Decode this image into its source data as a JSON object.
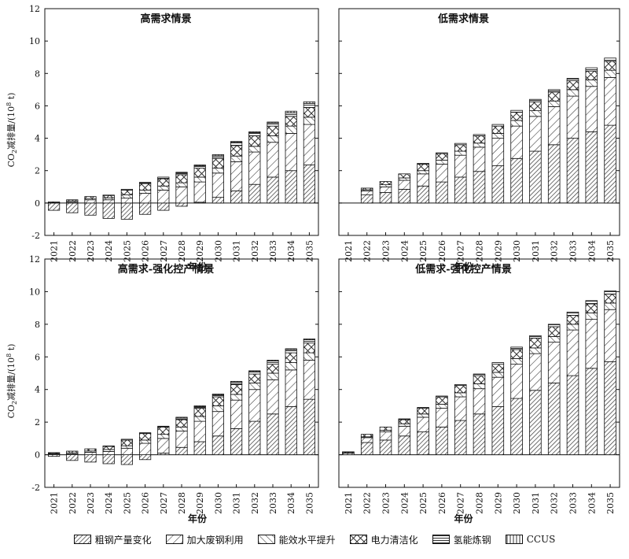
{
  "y_label_main": "CO",
  "y_label_sub": "2",
  "y_label_rest": "减排量/(10",
  "y_label_sup": "8",
  "y_label_end": " t)",
  "legend": [
    {
      "name": "粗钢产量变化",
      "pattern": "diag-dense"
    },
    {
      "name": "加大废钢利用",
      "pattern": "diag-sparse"
    },
    {
      "name": "能效水平提升",
      "pattern": "backdiag"
    },
    {
      "name": "电力清洁化",
      "pattern": "cross"
    },
    {
      "name": "氢能炼钢",
      "pattern": "hlines"
    },
    {
      "name": "CCUS",
      "pattern": "vlines"
    }
  ],
  "chart_data": [
    {
      "type": "bar",
      "stacked": true,
      "title": "高需求情景",
      "xlabel": "年份",
      "ylabel": "CO2减排量/(10^8 t)",
      "ylim": [
        -2,
        12
      ],
      "yticks": [
        -2,
        0,
        2,
        4,
        6,
        8,
        10,
        12
      ],
      "categories": [
        "2021",
        "2022",
        "2023",
        "2024",
        "2025",
        "2026",
        "2027",
        "2028",
        "2029",
        "2030",
        "2031",
        "2032",
        "2033",
        "2034",
        "2035"
      ],
      "series": [
        {
          "name": "粗钢产量变化",
          "values": [
            -0.45,
            -0.6,
            -0.75,
            -0.95,
            -1.0,
            -0.7,
            -0.45,
            -0.2,
            0.05,
            0.35,
            0.75,
            1.15,
            1.6,
            2.0,
            2.35
          ]
        },
        {
          "name": "加大废钢利用",
          "values": [
            0.0,
            0.05,
            0.2,
            0.2,
            0.3,
            0.6,
            0.8,
            1.0,
            1.25,
            1.5,
            1.8,
            2.0,
            2.15,
            2.3,
            2.5
          ]
        },
        {
          "name": "能效水平提升",
          "values": [
            0.02,
            0.08,
            0.08,
            0.12,
            0.2,
            0.2,
            0.25,
            0.25,
            0.3,
            0.3,
            0.35,
            0.35,
            0.4,
            0.45,
            0.45
          ]
        },
        {
          "name": "电力清洁化",
          "values": [
            0.05,
            0.07,
            0.12,
            0.15,
            0.3,
            0.4,
            0.45,
            0.5,
            0.55,
            0.6,
            0.65,
            0.65,
            0.6,
            0.6,
            0.6
          ]
        },
        {
          "name": "氢能炼钢",
          "values": [
            0.0,
            0.0,
            0.0,
            0.02,
            0.05,
            0.08,
            0.1,
            0.12,
            0.15,
            0.17,
            0.2,
            0.2,
            0.2,
            0.22,
            0.25
          ]
        },
        {
          "name": "CCUS",
          "values": [
            0.0,
            0.0,
            0.0,
            0.0,
            0.0,
            0.0,
            0.0,
            0.03,
            0.05,
            0.07,
            0.05,
            0.05,
            0.05,
            0.1,
            0.1
          ]
        }
      ]
    },
    {
      "type": "bar",
      "stacked": true,
      "title": "低需求情景",
      "xlabel": "年份",
      "ylim": [
        -2,
        12
      ],
      "yticks": [
        -2,
        0,
        2,
        4,
        6,
        8,
        10,
        12
      ],
      "categories": [
        "2021",
        "2022",
        "2023",
        "2024",
        "2025",
        "2026",
        "2027",
        "2028",
        "2029",
        "2030",
        "2031",
        "2032",
        "2033",
        "2034",
        "2035"
      ],
      "series": [
        {
          "name": "粗钢产量变化",
          "values": [
            0.0,
            0.5,
            0.65,
            0.85,
            1.05,
            1.3,
            1.6,
            1.95,
            2.3,
            2.75,
            3.2,
            3.6,
            4.0,
            4.4,
            4.8
          ]
        },
        {
          "name": "加大废钢利用",
          "values": [
            0.0,
            0.25,
            0.35,
            0.55,
            0.75,
            1.1,
            1.35,
            1.5,
            1.7,
            2.0,
            2.15,
            2.35,
            2.6,
            2.8,
            2.95
          ]
        },
        {
          "name": "能效水平提升",
          "values": [
            0.0,
            0.07,
            0.13,
            0.15,
            0.2,
            0.25,
            0.25,
            0.25,
            0.3,
            0.35,
            0.35,
            0.35,
            0.4,
            0.4,
            0.45
          ]
        },
        {
          "name": "电力清洁化",
          "values": [
            0.0,
            0.1,
            0.2,
            0.25,
            0.4,
            0.4,
            0.4,
            0.45,
            0.45,
            0.5,
            0.55,
            0.55,
            0.55,
            0.55,
            0.55
          ]
        },
        {
          "name": "氢能炼钢",
          "values": [
            0.0,
            0.0,
            0.0,
            0.0,
            0.05,
            0.05,
            0.08,
            0.08,
            0.1,
            0.12,
            0.15,
            0.15,
            0.15,
            0.2,
            0.2
          ]
        },
        {
          "name": "CCUS",
          "values": [
            0.0,
            0.0,
            0.0,
            0.0,
            0.0,
            0.0,
            0.0,
            0.0,
            0.0,
            0.0,
            0.0,
            0.0,
            0.0,
            0.0,
            0.0
          ]
        }
      ]
    },
    {
      "type": "bar",
      "stacked": true,
      "title": "高需求-强化控产情景",
      "xlabel": "年份",
      "ylabel": "CO2减排量/(10^8 t)",
      "ylim": [
        -2,
        12
      ],
      "yticks": [
        -2,
        0,
        2,
        4,
        6,
        8,
        10,
        12
      ],
      "categories": [
        "2021",
        "2022",
        "2023",
        "2024",
        "2025",
        "2026",
        "2027",
        "2028",
        "2029",
        "2030",
        "2031",
        "2032",
        "2033",
        "2034",
        "2035"
      ],
      "series": [
        {
          "name": "粗钢产量变化",
          "values": [
            -0.1,
            -0.35,
            -0.45,
            -0.55,
            -0.6,
            -0.3,
            0.1,
            0.45,
            0.8,
            1.15,
            1.6,
            2.05,
            2.5,
            2.95,
            3.4
          ]
        },
        {
          "name": "加大废钢利用",
          "values": [
            0.05,
            0.05,
            0.15,
            0.2,
            0.4,
            0.7,
            0.9,
            1.0,
            1.25,
            1.5,
            1.75,
            1.95,
            2.1,
            2.25,
            2.4
          ]
        },
        {
          "name": "能效水平提升",
          "values": [
            0.03,
            0.07,
            0.08,
            0.12,
            0.15,
            0.2,
            0.25,
            0.25,
            0.3,
            0.35,
            0.35,
            0.4,
            0.4,
            0.45,
            0.45
          ]
        },
        {
          "name": "电力清洁化",
          "values": [
            0.05,
            0.1,
            0.13,
            0.2,
            0.35,
            0.4,
            0.45,
            0.45,
            0.5,
            0.55,
            0.6,
            0.55,
            0.55,
            0.6,
            0.6
          ]
        },
        {
          "name": "氢能炼钢",
          "values": [
            0.0,
            0.0,
            0.0,
            0.02,
            0.05,
            0.05,
            0.05,
            0.1,
            0.1,
            0.12,
            0.15,
            0.15,
            0.2,
            0.2,
            0.2
          ]
        },
        {
          "name": "CCUS",
          "values": [
            0.0,
            0.0,
            0.0,
            0.0,
            0.0,
            0.0,
            0.0,
            0.05,
            0.05,
            0.05,
            0.05,
            0.05,
            0.05,
            0.05,
            0.05
          ]
        }
      ]
    },
    {
      "type": "bar",
      "stacked": true,
      "title": "低需求-强化控产情景",
      "xlabel": "年份",
      "ylim": [
        -2,
        12
      ],
      "yticks": [
        -2,
        0,
        2,
        4,
        6,
        8,
        10,
        12
      ],
      "categories": [
        "2021",
        "2022",
        "2023",
        "2024",
        "2025",
        "2026",
        "2027",
        "2028",
        "2029",
        "2030",
        "2031",
        "2032",
        "2033",
        "2034",
        "2035"
      ],
      "series": [
        {
          "name": "粗钢产量变化",
          "values": [
            0.1,
            0.75,
            0.9,
            1.15,
            1.4,
            1.7,
            2.1,
            2.5,
            2.95,
            3.45,
            3.95,
            4.4,
            4.85,
            5.3,
            5.7
          ]
        },
        {
          "name": "加大废钢利用",
          "values": [
            0.0,
            0.3,
            0.5,
            0.6,
            0.9,
            1.15,
            1.45,
            1.55,
            1.8,
            2.1,
            2.25,
            2.5,
            2.8,
            3.0,
            3.2
          ]
        },
        {
          "name": "能效水平提升",
          "values": [
            0.03,
            0.05,
            0.1,
            0.15,
            0.2,
            0.25,
            0.25,
            0.3,
            0.3,
            0.35,
            0.35,
            0.35,
            0.35,
            0.4,
            0.4
          ]
        },
        {
          "name": "电力清洁化",
          "values": [
            0.05,
            0.15,
            0.2,
            0.25,
            0.35,
            0.45,
            0.45,
            0.5,
            0.5,
            0.55,
            0.6,
            0.6,
            0.55,
            0.55,
            0.55
          ]
        },
        {
          "name": "氢能炼钢",
          "values": [
            0.0,
            0.0,
            0.0,
            0.05,
            0.05,
            0.05,
            0.05,
            0.1,
            0.1,
            0.15,
            0.15,
            0.15,
            0.2,
            0.2,
            0.2
          ]
        },
        {
          "name": "CCUS",
          "values": [
            0.0,
            0.0,
            0.0,
            0.0,
            0.0,
            0.0,
            0.0,
            0.0,
            0.0,
            0.0,
            0.0,
            0.0,
            0.0,
            0.0,
            0.0
          ]
        }
      ]
    }
  ]
}
